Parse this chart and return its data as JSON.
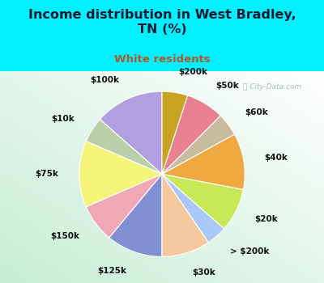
{
  "title": "Income distribution in West Bradley,\nTN (%)",
  "subtitle": "White residents",
  "title_color": "#1a1a2e",
  "subtitle_color": "#b05828",
  "bg_top_color": "#00f0ff",
  "chart_bg_color": "#e8f5ee",
  "watermark": "ⓘ City-Data.com",
  "labels": [
    "$100k",
    "$10k",
    "$75k",
    "$150k",
    "$125k",
    "$30k",
    "> $200k",
    "$20k",
    "$40k",
    "$60k",
    "$50k",
    "$200k"
  ],
  "sizes": [
    13.5,
    5.0,
    13.0,
    7.5,
    11.0,
    9.5,
    4.0,
    8.5,
    11.0,
    4.5,
    7.5,
    5.0
  ],
  "colors": [
    "#b0a0e0",
    "#b8cfa8",
    "#f4f478",
    "#f0a8b8",
    "#8090d0",
    "#f5c8a0",
    "#a8c8f8",
    "#c8e858",
    "#f0a840",
    "#c8bc9e",
    "#e88090",
    "#c8a420"
  ],
  "startangle": 90,
  "label_fontsize": 7.5,
  "label_color": "#111111",
  "label_distance": 1.25
}
